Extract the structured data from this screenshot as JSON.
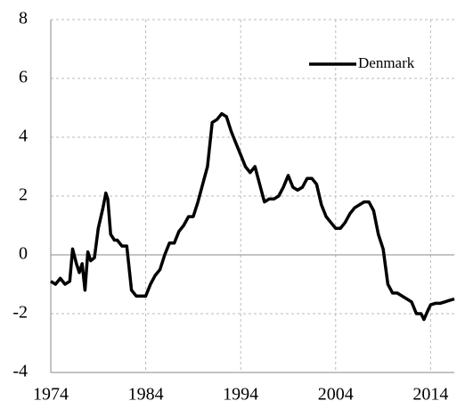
{
  "chart_data": {
    "type": "line",
    "x": [
      1974,
      1974.5,
      1975,
      1975.5,
      1976,
      1976.3,
      1976.7,
      1977,
      1977.3,
      1977.6,
      1977.9,
      1978.2,
      1978.6,
      1979,
      1979.5,
      1979.8,
      1980,
      1980.3,
      1980.7,
      1981,
      1981.5,
      1982,
      1982.5,
      1983,
      1983.5,
      1984,
      1984.5,
      1985,
      1985.5,
      1986,
      1986.5,
      1987,
      1987.5,
      1988,
      1988.5,
      1989,
      1989.5,
      1990,
      1990.5,
      1991,
      1991.5,
      1992,
      1992.5,
      1993,
      1993.5,
      1994,
      1994.5,
      1995,
      1995.5,
      1996,
      1996.5,
      1997,
      1997.5,
      1998,
      1998.5,
      1999,
      1999.5,
      2000,
      2000.5,
      2001,
      2001.5,
      2002,
      2002.5,
      2003,
      2003.5,
      2004,
      2004.5,
      2005,
      2005.5,
      2006,
      2006.5,
      2007,
      2007.5,
      2008,
      2008.5,
      2009,
      2009.5,
      2010,
      2010.5,
      2011,
      2011.5,
      2012,
      2012.5,
      2013,
      2013.3,
      2013.7,
      2014,
      2014.5,
      2015,
      2015.5,
      2016,
      2016.5
    ],
    "series": [
      {
        "name": "Denmark",
        "color": "#000000",
        "values": [
          -0.9,
          -1.0,
          -0.8,
          -1.0,
          -0.9,
          0.2,
          -0.3,
          -0.6,
          -0.3,
          -1.2,
          0.1,
          -0.2,
          -0.1,
          0.9,
          1.6,
          2.1,
          1.9,
          0.7,
          0.5,
          0.5,
          0.3,
          0.3,
          -1.2,
          -1.4,
          -1.4,
          -1.4,
          -1.0,
          -0.7,
          -0.5,
          0.0,
          0.4,
          0.4,
          0.8,
          1.0,
          1.3,
          1.3,
          1.8,
          2.4,
          3.0,
          4.5,
          4.6,
          4.8,
          4.7,
          4.2,
          3.8,
          3.4,
          3.0,
          2.8,
          3.0,
          2.4,
          1.8,
          1.9,
          1.9,
          2.0,
          2.3,
          2.7,
          2.3,
          2.2,
          2.3,
          2.6,
          2.6,
          2.4,
          1.7,
          1.3,
          1.1,
          0.9,
          0.9,
          1.1,
          1.4,
          1.6,
          1.7,
          1.8,
          1.8,
          1.5,
          0.7,
          0.2,
          -1.0,
          -1.3,
          -1.3,
          -1.4,
          -1.5,
          -1.6,
          -2.0,
          -2.0,
          -2.2,
          -1.9,
          -1.7,
          -1.65,
          -1.65,
          -1.6,
          -1.55,
          -1.5
        ]
      }
    ],
    "xlim": [
      1974,
      2016.5
    ],
    "xticks": [
      1974,
      1984,
      1994,
      2004,
      2014
    ],
    "ylim": [
      -4,
      8
    ],
    "yticks": [
      -4,
      -2,
      0,
      2,
      4,
      6,
      8
    ],
    "grid": true,
    "legend": "upper right"
  }
}
